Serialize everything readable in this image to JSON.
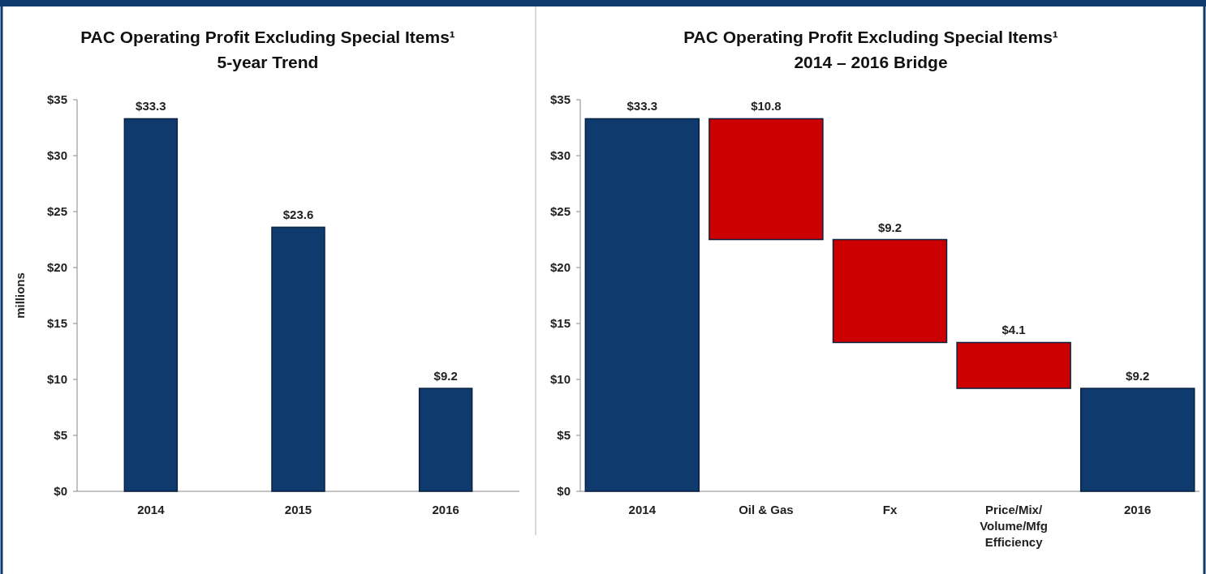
{
  "chart_data": [
    {
      "type": "bar",
      "title": "PAC Operating Profit Excluding Special Items¹",
      "subtitle": "5-year Trend",
      "ylabel": "millions",
      "categories": [
        "2014",
        "2015",
        "2016"
      ],
      "values": [
        33.3,
        23.6,
        9.2
      ],
      "value_labels": [
        "$33.3",
        "$23.6",
        "$9.2"
      ],
      "color": "#0f3a6e",
      "ylim": [
        0,
        35
      ],
      "yticks": [
        {
          "value": 0,
          "label": "$0"
        },
        {
          "value": 5,
          "label": "$5"
        },
        {
          "value": 10,
          "label": "$10"
        },
        {
          "value": 15,
          "label": "$15"
        },
        {
          "value": 20,
          "label": "$20"
        },
        {
          "value": 25,
          "label": "$25"
        },
        {
          "value": 30,
          "label": "$30"
        },
        {
          "value": 35,
          "label": "$35"
        }
      ],
      "grid": false
    },
    {
      "type": "bar",
      "title": "PAC Operating Profit Excluding Special Items¹",
      "subtitle": "2014 – 2016 Bridge",
      "categories": [
        "2014",
        "Oil & Gas",
        "Fx",
        "Price/Mix/Volume/Mfg Efficiency",
        "2016"
      ],
      "values": [
        33.3,
        10.8,
        9.2,
        4.1,
        9.2
      ],
      "value_labels": [
        "$33.3",
        "$10.8",
        "$9.2",
        "$4.1",
        "$9.2"
      ],
      "base": [
        0,
        22.5,
        13.3,
        9.2,
        0
      ],
      "colors": [
        "#0f3a6e",
        "#cc0000",
        "#cc0000",
        "#cc0000",
        "#0f3a6e"
      ],
      "ylim": [
        0,
        35
      ],
      "yticks": [
        {
          "value": 0,
          "label": "$0"
        },
        {
          "value": 5,
          "label": "$5"
        },
        {
          "value": 10,
          "label": "$10"
        },
        {
          "value": 15,
          "label": "$15"
        },
        {
          "value": 20,
          "label": "$20"
        },
        {
          "value": 25,
          "label": "$25"
        },
        {
          "value": 30,
          "label": "$30"
        },
        {
          "value": 35,
          "label": "$35"
        }
      ],
      "grid": false
    }
  ]
}
